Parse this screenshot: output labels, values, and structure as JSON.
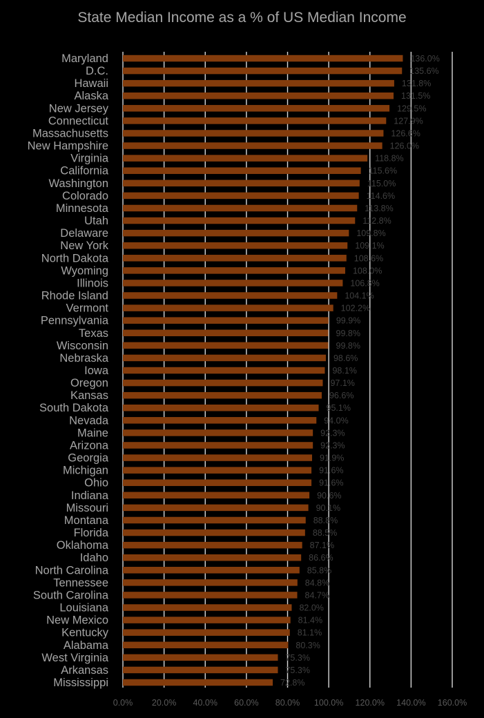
{
  "chart_data": {
    "type": "bar",
    "orientation": "horizontal",
    "title": "State Median Income as a % of US Median Income",
    "xlabel": "",
    "ylabel": "",
    "xlim": [
      0,
      160
    ],
    "x_ticks": [
      "0.0%",
      "20.0%",
      "40.0%",
      "60.0%",
      "80.0%",
      "100.0%",
      "120.0%",
      "140.0%",
      "160.0%"
    ],
    "grid": "vertical",
    "bar_color": "#843C0C",
    "background": "#000000",
    "categories": [
      "Maryland",
      "D.C.",
      "Hawaii",
      "Alaska",
      "New Jersey",
      "Connecticut",
      "Massachusetts",
      "New Hampshire",
      "Virginia",
      "California",
      "Washington",
      "Colorado",
      "Minnesota",
      "Utah",
      "Delaware",
      "New York",
      "North Dakota",
      "Wyoming",
      "Illinois",
      "Rhode Island",
      "Vermont",
      "Pennsylvania",
      "Texas",
      "Wisconsin",
      "Nebraska",
      "Iowa",
      "Oregon",
      "Kansas",
      "South Dakota",
      "Nevada",
      "Maine",
      "Arizona",
      "Georgia",
      "Michigan",
      "Ohio",
      "Indiana",
      "Missouri",
      "Montana",
      "Florida",
      "Oklahoma",
      "Idaho",
      "North Carolina",
      "Tennessee",
      "South Carolina",
      "Louisiana",
      "New Mexico",
      "Kentucky",
      "Alabama",
      "West Virginia",
      "Arkansas",
      "Mississippi"
    ],
    "values": [
      136.0,
      135.6,
      131.8,
      131.5,
      129.5,
      127.9,
      126.6,
      126.0,
      118.8,
      115.6,
      115.0,
      114.6,
      113.8,
      112.8,
      109.8,
      109.1,
      108.6,
      108.0,
      106.8,
      104.1,
      102.2,
      99.9,
      99.8,
      99.8,
      98.6,
      98.1,
      97.1,
      96.6,
      95.1,
      94.0,
      92.3,
      92.3,
      91.9,
      91.6,
      91.6,
      90.6,
      90.1,
      88.8,
      88.5,
      87.1,
      86.6,
      85.8,
      84.8,
      84.7,
      82.0,
      81.4,
      81.1,
      80.3,
      75.3,
      75.3,
      72.8
    ],
    "data_labels": [
      "136.0%",
      "135.6%",
      "131.8%",
      "131.5%",
      "129.5%",
      "127.9%",
      "126.6%",
      "126.0%",
      "118.8%",
      "115.6%",
      "115.0%",
      "114.6%",
      "113.8%",
      "112.8%",
      "109.8%",
      "109.1%",
      "108.6%",
      "108.0%",
      "106.8%",
      "104.1%",
      "102.2%",
      "99.9%",
      "99.8%",
      "99.8%",
      "98.6%",
      "98.1%",
      "97.1%",
      "96.6%",
      "95.1%",
      "94.0%",
      "92.3%",
      "92.3%",
      "91.9%",
      "91.6%",
      "91.6%",
      "90.6%",
      "90.1%",
      "88.8%",
      "88.5%",
      "87.1%",
      "86.6%",
      "85.8%",
      "84.8%",
      "84.7%",
      "82.0%",
      "81.4%",
      "81.1%",
      "80.3%",
      "75.3%",
      "75.3%",
      "72.8%"
    ]
  }
}
